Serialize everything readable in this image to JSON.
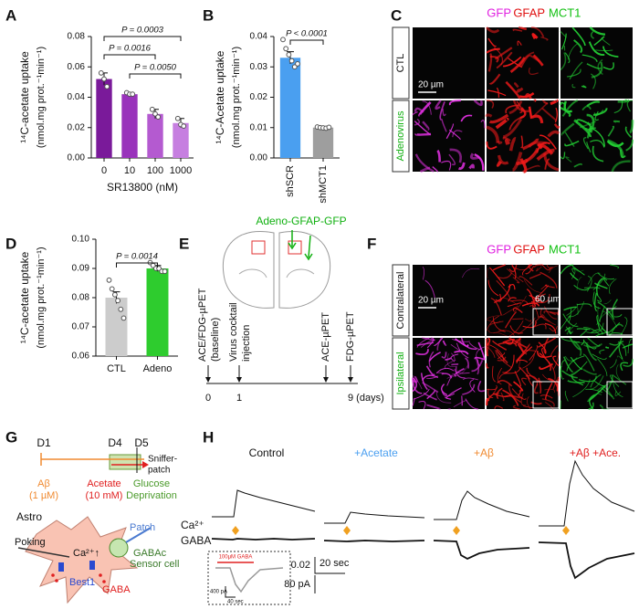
{
  "chart_data": [
    {
      "type": "bar",
      "ylabel": [
        "¹⁴C-acetate uptake",
        "(nmol.mg prot.⁻¹min⁻¹)"
      ],
      "xlabel": "SR13800 (nM)",
      "categories": [
        "0",
        "10",
        "100",
        "1000"
      ],
      "values": [
        0.052,
        0.042,
        0.029,
        0.023
      ],
      "errors": [
        0.004,
        0.001,
        0.003,
        0.003
      ],
      "points": [
        [
          0.056,
          0.052,
          0.047
        ],
        [
          0.043,
          0.042,
          0.042
        ],
        [
          0.032,
          0.029,
          0.027
        ],
        [
          0.026,
          0.022,
          0.021
        ]
      ],
      "colors": [
        "#7a1a9a",
        "#9933bb",
        "#b45ad0",
        "#c67fe0"
      ],
      "ylim": [
        0,
        0.08
      ],
      "yticks": [
        {
          "value": 0,
          "label": "0.00"
        },
        {
          "value": 0.02,
          "label": "0.02"
        },
        {
          "value": 0.04,
          "label": "0.04"
        },
        {
          "value": 0.06,
          "label": "0.06"
        },
        {
          "value": 0.08,
          "label": "0.08"
        }
      ],
      "annotations": [
        "P = 0.0003",
        "P = 0.0016",
        "P = 0.0050"
      ]
    },
    {
      "type": "bar",
      "ylabel": [
        "¹⁴C-Acetate uptake",
        "(nmol.mg prot.⁻¹min⁻¹)"
      ],
      "categories": [
        "shSCR",
        "shMCT1"
      ],
      "values": [
        0.033,
        0.01
      ],
      "errors": [
        0.002,
        0.0003
      ],
      "points": [
        [
          0.039,
          0.036,
          0.034,
          0.032,
          0.03,
          0.031
        ],
        [
          0.0102,
          0.01,
          0.0099,
          0.0098,
          0.0101
        ]
      ],
      "colors": [
        "#4a9ff0",
        "#9e9e9e"
      ],
      "ylim": [
        0,
        0.04
      ],
      "yticks": [
        {
          "value": 0,
          "label": "0.00"
        },
        {
          "value": 0.01,
          "label": "0.01"
        },
        {
          "value": 0.02,
          "label": "0.02"
        },
        {
          "value": 0.03,
          "label": "0.03"
        },
        {
          "value": 0.04,
          "label": "0.04"
        }
      ],
      "annotations": [
        "P < 0.0001"
      ]
    },
    {
      "type": "bar",
      "ylabel": [
        "¹⁴C-acetate uptake",
        "(nmol.mg prot.⁻¹min⁻¹)"
      ],
      "categories": [
        "CTL",
        "Adeno"
      ],
      "values": [
        0.08,
        0.09
      ],
      "errors": [
        0.002,
        0.001
      ],
      "points": [
        [
          0.086,
          0.083,
          0.081,
          0.079,
          0.076,
          0.073
        ],
        [
          0.092,
          0.091,
          0.09,
          0.09,
          0.089,
          0.089
        ]
      ],
      "colors": [
        "#cccccc",
        "#2ecc2e"
      ],
      "ylim": [
        0.06,
        0.1
      ],
      "yticks": [
        {
          "value": 0.06,
          "label": "0.06"
        },
        {
          "value": 0.07,
          "label": "0.07"
        },
        {
          "value": 0.08,
          "label": "0.08"
        },
        {
          "value": 0.09,
          "label": "0.09"
        },
        {
          "value": 0.1,
          "label": "0.10"
        }
      ],
      "annotations": [
        "P = 0.0014"
      ]
    }
  ],
  "panel_letters": [
    "A",
    "B",
    "C",
    "D",
    "E",
    "F",
    "G",
    "H"
  ],
  "panel_c": {
    "channels": [
      "GFP",
      "GFAP",
      "MCT1"
    ],
    "rows": [
      "CTL",
      "Adenovirus"
    ],
    "scale": "20 µm"
  },
  "panel_e": {
    "injection": "Adeno-GFAP-GFP",
    "events": [
      [
        "ACE/FDG-µPET",
        "(baseline)"
      ],
      [
        "Virus cocktail",
        "injection"
      ],
      [
        "ACE-µPET"
      ],
      [
        "FDG-µPET"
      ]
    ],
    "days": [
      "0",
      "1",
      "9 (days)"
    ]
  },
  "panel_f": {
    "channels": [
      "GFP",
      "GFAP",
      "MCT1"
    ],
    "rows": [
      "Contralateral",
      "Ipsilateral"
    ],
    "scales": [
      "20 µm",
      "60 µm"
    ]
  },
  "panel_g": {
    "days": [
      "D1",
      "D4",
      "D5"
    ],
    "recording": [
      "Sniffer-",
      "patch"
    ],
    "treatments": [
      [
        "Aβ",
        "(1 µM)"
      ],
      [
        "Acetate",
        "(10 mM)"
      ],
      [
        "Glucose",
        "Deprivation"
      ]
    ],
    "cell_labels": [
      "Astro",
      "Patch",
      "Poking",
      "Ca²⁺↑",
      "GABAc",
      "Sensor cell",
      "Best1",
      "GABA"
    ]
  },
  "panel_h": {
    "conditions": [
      "Control",
      "+Acetate",
      "+Aβ",
      "+Aβ +Ace."
    ],
    "traces": [
      "Ca²⁺",
      "GABA"
    ],
    "scale_bars": [
      "0.02",
      "20 sec",
      "80 pA"
    ],
    "inset": [
      "100μM GABA",
      "400 pA",
      "40 sec"
    ]
  }
}
